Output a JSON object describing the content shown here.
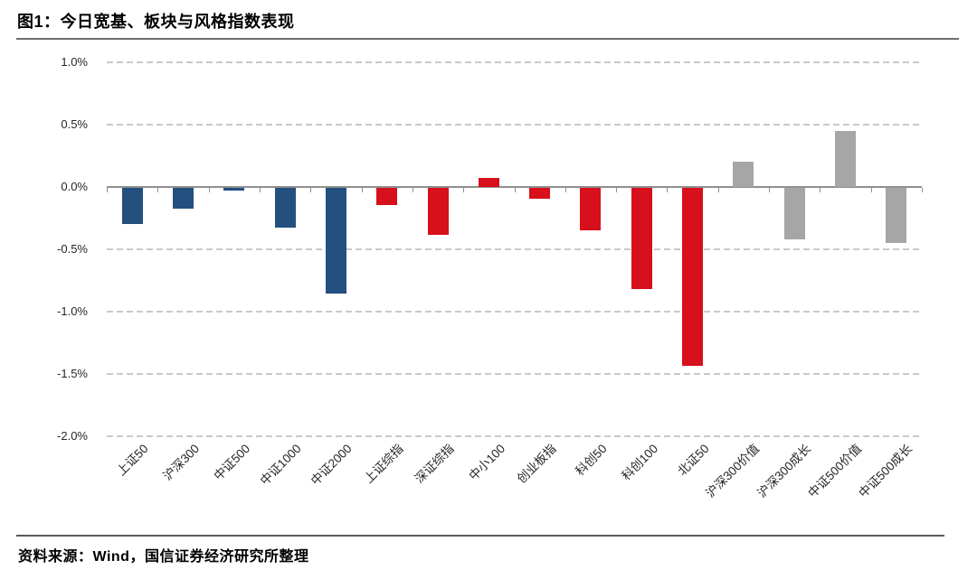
{
  "page": {
    "figure_title": "图1：今日宽基、板块与风格指数表现",
    "source_note": "资料来源：Wind，国信证券经济研究所整理"
  },
  "chart_data": {
    "type": "bar",
    "title": "今日宽基、板块与风格指数表现",
    "xlabel": "",
    "ylabel": "",
    "unit": "%",
    "categories": [
      "上证50",
      "沪深300",
      "中证500",
      "中证1000",
      "中证2000",
      "上证综指",
      "深证综指",
      "中小100",
      "创业板指",
      "科创50",
      "科创100",
      "北证50",
      "沪深300价值",
      "沪深300成长",
      "中证500价值",
      "中证500成长"
    ],
    "values": [
      -0.29,
      -0.17,
      -0.02,
      -0.32,
      -0.85,
      -0.14,
      -0.38,
      0.07,
      -0.09,
      -0.34,
      -0.81,
      -1.43,
      0.2,
      -0.41,
      0.45,
      -0.44
    ],
    "groups": [
      "broad",
      "broad",
      "broad",
      "broad",
      "broad",
      "sector",
      "sector",
      "sector",
      "sector",
      "sector",
      "sector",
      "sector",
      "style",
      "style",
      "style",
      "style"
    ],
    "group_colors": {
      "broad": "#24507F",
      "sector": "#D7101B",
      "style": "#A6A6A6"
    },
    "ylim": [
      -2.0,
      1.0
    ],
    "yticks": [
      {
        "label": "1.0%",
        "value": 1.0
      },
      {
        "label": "0.5%",
        "value": 0.5
      },
      {
        "label": "0.0%",
        "value": 0.0
      },
      {
        "label": "-0.5%",
        "value": -0.5
      },
      {
        "label": "-1.0%",
        "value": -1.0
      },
      {
        "label": "-1.5%",
        "value": -1.5
      },
      {
        "label": "-2.0%",
        "value": -2.0
      }
    ],
    "grid": "horizontal-dashed",
    "legend": "none"
  }
}
